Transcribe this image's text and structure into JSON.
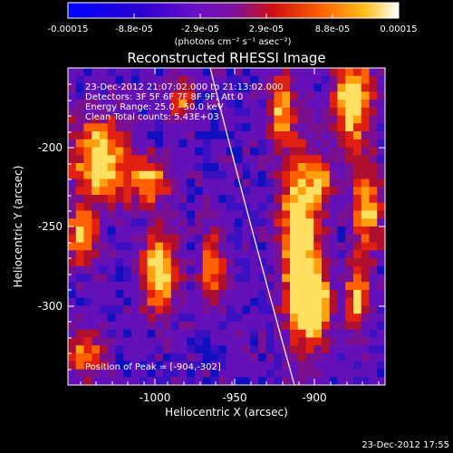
{
  "colorbar": {
    "ticks": [
      "-0.00015",
      "-8.8e-05",
      "-2.9e-05",
      "2.9e-05",
      "8.8e-05",
      "0.00015"
    ],
    "units_label": "(photons cm⁻² s⁻¹ asec⁻²)"
  },
  "title": "Reconstructed RHESSI Image",
  "info": {
    "line1": "23-Dec-2012 21:07:02.000 to 21:13:02.000",
    "line2": "Detectors: 3F 5F 6F 7F 8F 9F, Att 0",
    "line3": "Energy Range: 25.0 - 50.0 keV",
    "line4": "Clean     Total counts: 5.43E+03"
  },
  "peak": "Position of Peak = [-904,-302]",
  "x_axis": {
    "label": "Heliocentric X (arcsec)",
    "ticks": [
      "-1000",
      "-950",
      "-900"
    ]
  },
  "y_axis": {
    "label": "Heliocentric Y (arcsec)",
    "ticks": [
      "-200",
      "-250",
      "-300"
    ]
  },
  "timestamp": "23-Dec-2012 17:55",
  "colors": {
    "background": "#000000",
    "limb": "#ffffff"
  }
}
